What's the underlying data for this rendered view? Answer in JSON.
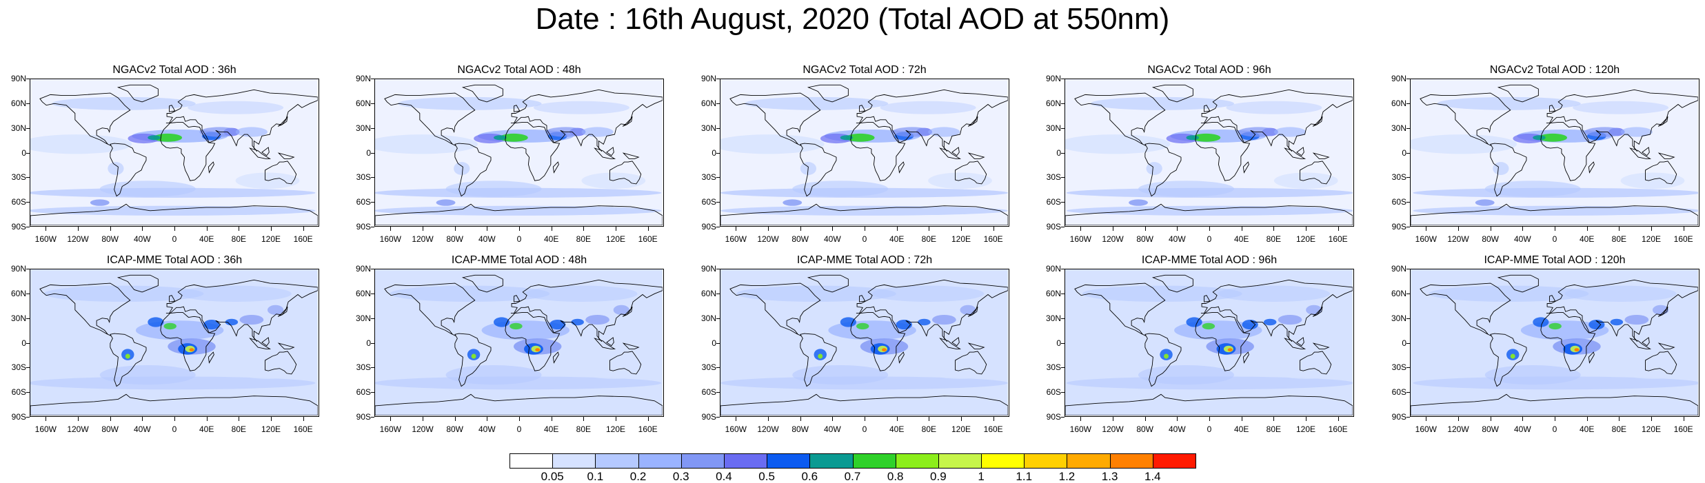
{
  "page_title": "Date : 16th August, 2020 (Total AOD at 550nm)",
  "lat_labels": [
    "90N",
    "60N",
    "30N",
    "0",
    "30S",
    "60S",
    "90S"
  ],
  "lon_labels": [
    "160W",
    "120W",
    "80W",
    "40W",
    "0",
    "40E",
    "80E",
    "120E",
    "160E"
  ],
  "rows": [
    {
      "model": "NGACv2",
      "panels": [
        {
          "title": "NGACv2 Total AOD : 36h"
        },
        {
          "title": "NGACv2 Total AOD : 48h"
        },
        {
          "title": "NGACv2 Total AOD : 72h"
        },
        {
          "title": "NGACv2 Total AOD : 96h"
        },
        {
          "title": "NGACv2 Total AOD : 120h"
        }
      ]
    },
    {
      "model": "ICAP-MME",
      "panels": [
        {
          "title": "ICAP-MME Total AOD : 36h"
        },
        {
          "title": "ICAP-MME Total AOD : 48h"
        },
        {
          "title": "ICAP-MME Total AOD : 72h"
        },
        {
          "title": "ICAP-MME Total AOD : 96h"
        },
        {
          "title": "ICAP-MME Total AOD : 120h"
        }
      ]
    }
  ],
  "colorbar": {
    "labels": [
      "0.05",
      "0.1",
      "0.2",
      "0.3",
      "0.4",
      "0.5",
      "0.6",
      "0.7",
      "0.8",
      "0.9",
      "1",
      "1.1",
      "1.2",
      "1.3",
      "1.4"
    ],
    "colors": [
      "#ffffff",
      "#d6e2ff",
      "#b5c9ff",
      "#9ab3ff",
      "#8197f5",
      "#6a6cf2",
      "#0c5bf0",
      "#0a9a92",
      "#2fd12a",
      "#8cee1b",
      "#c6f54a",
      "#ffff00",
      "#ffd000",
      "#ffaa00",
      "#ff8000",
      "#ff1a00"
    ]
  },
  "colors": {
    "land_outline": "#000000",
    "background_aod": "#d6e2ff"
  }
}
